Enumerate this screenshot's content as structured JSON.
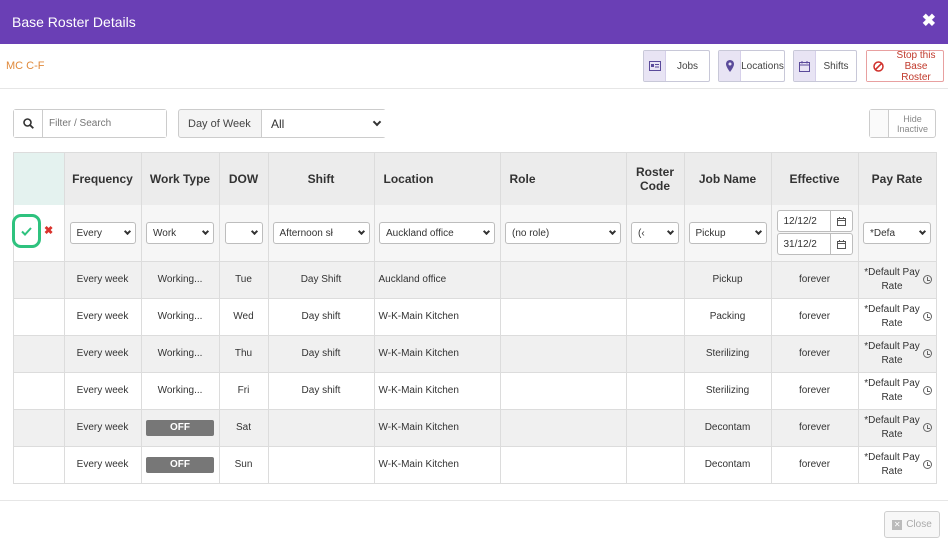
{
  "window": {
    "title": "Base Roster Details",
    "close_symbol": "✖"
  },
  "topbar": {
    "code": "MC C-F",
    "buttons": {
      "jobs": "Jobs",
      "locations": "Locations",
      "shifts": "Shifts",
      "stop_line1": "Stop this",
      "stop_line2": "Base Roster"
    }
  },
  "filters": {
    "search_placeholder": "Filter / Search",
    "dow_label": "Day of Week",
    "dow_value": "All",
    "hide_line1": "Hide",
    "hide_line2": "Inactive"
  },
  "table": {
    "headers": {
      "frequency": "Frequency",
      "work_type": "Work Type",
      "dow": "DOW",
      "shift": "Shift",
      "location": "Location",
      "role": "Role",
      "roster_code_1": "Roster",
      "roster_code_2": "Code",
      "job_name": "Job Name",
      "effective": "Effective",
      "pay_rate": "Pay Rate"
    },
    "edit_row": {
      "frequency": "Every",
      "work_type": "Work",
      "dow": "",
      "shift": "Afternoon sł",
      "location": "Auckland office",
      "role": "(no role)",
      "roster_code": "(‹",
      "job_name": "Pickup",
      "effective_from": "12/12/2",
      "effective_to": "31/12/2",
      "pay_rate": "*Defa"
    },
    "rows": [
      {
        "frequency": "Every week",
        "work_type": "Working...",
        "off": false,
        "dow": "Tue",
        "shift": "Day Shift",
        "location": "Auckland office",
        "role": "",
        "roster_code": "",
        "job_name": "Pickup",
        "effective": "forever",
        "pay_rate_1": "*Default Pay",
        "pay_rate_2": "Rate"
      },
      {
        "frequency": "Every week",
        "work_type": "Working...",
        "off": false,
        "dow": "Wed",
        "shift": "Day shift",
        "location": "W-K-Main Kitchen",
        "role": "",
        "roster_code": "",
        "job_name": "Packing",
        "effective": "forever",
        "pay_rate_1": "*Default Pay",
        "pay_rate_2": "Rate"
      },
      {
        "frequency": "Every week",
        "work_type": "Working...",
        "off": false,
        "dow": "Thu",
        "shift": "Day shift",
        "location": "W-K-Main Kitchen",
        "role": "",
        "roster_code": "",
        "job_name": "Sterilizing",
        "effective": "forever",
        "pay_rate_1": "*Default Pay",
        "pay_rate_2": "Rate"
      },
      {
        "frequency": "Every week",
        "work_type": "Working...",
        "off": false,
        "dow": "Fri",
        "shift": "Day shift",
        "location": "W-K-Main Kitchen",
        "role": "",
        "roster_code": "",
        "job_name": "Sterilizing",
        "effective": "forever",
        "pay_rate_1": "*Default Pay",
        "pay_rate_2": "Rate"
      },
      {
        "frequency": "Every week",
        "work_type": "OFF",
        "off": true,
        "dow": "Sat",
        "shift": "",
        "location": "W-K-Main Kitchen",
        "role": "",
        "roster_code": "",
        "job_name": "Decontam",
        "effective": "forever",
        "pay_rate_1": "*Default Pay",
        "pay_rate_2": "Rate"
      },
      {
        "frequency": "Every week",
        "work_type": "OFF",
        "off": true,
        "dow": "Sun",
        "shift": "",
        "location": "W-K-Main Kitchen",
        "role": "",
        "roster_code": "",
        "job_name": "Decontam",
        "effective": "forever",
        "pay_rate_1": "*Default Pay",
        "pay_rate_2": "Rate"
      }
    ]
  },
  "footer": {
    "close_label": "Close"
  },
  "colors": {
    "header_bg": "#6a3fb5",
    "confirm": "#2ec27e",
    "cancel": "#d9322b",
    "code_text": "#e08a3c",
    "off_badge": "#777777"
  }
}
